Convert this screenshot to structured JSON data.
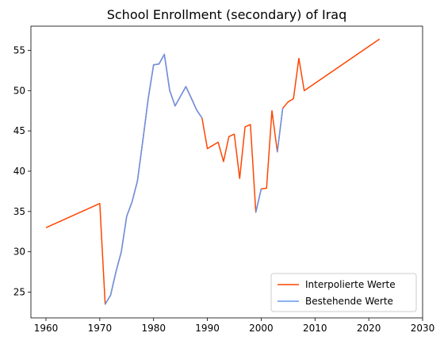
{
  "chart_data": {
    "type": "line",
    "title": "School Enrollment (secondary) of Iraq",
    "xlabel": "",
    "ylabel": "",
    "xlim": [
      1957.2,
      2030
    ],
    "ylim": [
      21.8,
      58.0
    ],
    "xticks": [
      1960,
      1970,
      1980,
      1990,
      2000,
      2010,
      2020,
      2030
    ],
    "yticks": [
      25,
      30,
      35,
      40,
      45,
      50,
      55
    ],
    "grid": false,
    "legend_position": "lower right",
    "series": [
      {
        "name": "Interpolierte Werte",
        "color": "#ff4500",
        "x": [
          1960,
          1970,
          1971,
          1972,
          1973,
          1974,
          1975,
          1976,
          1977,
          1978,
          1979,
          1980,
          1981,
          1982,
          1983,
          1984,
          1985,
          1986,
          1987,
          1988,
          1989,
          1990,
          1991,
          1992,
          1993,
          1994,
          1995,
          1996,
          1997,
          1998,
          1999,
          2000,
          2001,
          2002,
          2003,
          2004,
          2005,
          2006,
          2007,
          2008,
          2022
        ],
        "values": [
          33.0,
          36.0,
          23.5,
          24.6,
          27.5,
          30.0,
          34.4,
          36.2,
          38.8,
          43.8,
          49.0,
          53.2,
          53.3,
          54.5,
          50.0,
          48.1,
          49.3,
          50.5,
          49.1,
          47.6,
          46.6,
          42.8,
          43.2,
          43.6,
          41.2,
          44.3,
          44.6,
          39.1,
          45.5,
          45.8,
          34.9,
          37.8,
          37.9,
          47.5,
          42.4,
          47.8,
          48.6,
          49.0,
          54.0,
          50.0,
          56.4
        ]
      },
      {
        "name": "Bestehende Werte",
        "color": "#6495ed",
        "x": [
          1971,
          1972,
          1973,
          1974,
          1975,
          1976,
          1977,
          1978,
          1979,
          1980,
          1981,
          1982,
          1983,
          1984,
          1986,
          1988,
          1989,
          null,
          1999,
          2000,
          null,
          2003,
          2004
        ],
        "values": [
          23.5,
          24.6,
          27.5,
          30.0,
          34.4,
          36.2,
          38.8,
          43.8,
          49.0,
          53.2,
          53.3,
          54.5,
          50.0,
          48.1,
          50.5,
          47.6,
          46.6,
          null,
          34.9,
          37.8,
          null,
          42.4,
          47.8
        ]
      }
    ]
  }
}
